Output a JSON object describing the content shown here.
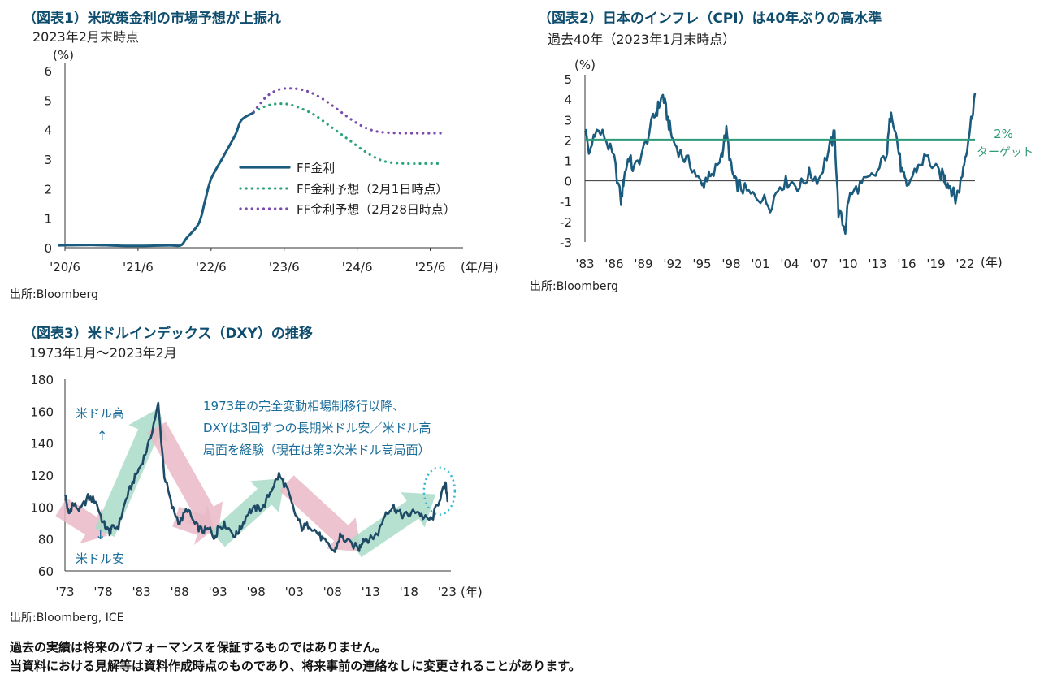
{
  "charts": [
    {
      "title": "（図表1）米政策金利の市場予想が上振れ",
      "subtitle": "2023年2月末時点",
      "source": "出所:Bloomberg",
      "unit_label": "(%)",
      "x_unit_label": "(年/月)"
    },
    {
      "title": "（図表2）日本のインフレ（CPI）は40年ぶりの高水準",
      "subtitle": "過去40年（2023年1月末時点）",
      "source": "出所:Bloomberg",
      "unit_label": "(%)",
      "x_unit_label": "(年)",
      "target_label_1": "2%",
      "target_label_2": "ターゲット"
    },
    {
      "title": "（図表3）米ドルインデックス（DXY）の推移",
      "subtitle": "1973年1月～2023年2月",
      "source": "出所:Bloomberg, ICE",
      "x_unit_label": "(年)",
      "annotation_lines": [
        "1973年の完全変動相場制移行以降、",
        "DXYは3回ずつの長期米ドル安／米ドル高",
        "局面を経験（現在は第3次米ドル高局面）"
      ],
      "label_high": "米ドル高",
      "label_low": "米ドル安",
      "arrow_up": "↑",
      "arrow_down": "↓"
    }
  ],
  "disclaimer": [
    "過去の実績は将来のパフォーマンスを保証するものではありません。",
    "当資料における見解等は資料作成時点のものであり、将来事前の連絡なしに変更されることがあります。"
  ],
  "colors": {
    "navy": "#1a5b7e",
    "teal": "#2aa37a",
    "purple": "#7a4aae",
    "green_line": "#2e9a7a",
    "pink": "#e9b8c6",
    "mint": "#a9dcc8",
    "cyan": "#35b7d0"
  },
  "chart_data": [
    {
      "type": "line",
      "title": "（図表1）米政策金利の市場予想が上振れ",
      "ylabel": "(%)",
      "xlabel": "(年/月)",
      "ylim": [
        0,
        6
      ],
      "yticks": [
        "0",
        "1",
        "2",
        "3",
        "4",
        "5",
        "6"
      ],
      "xticks": [
        "'20/6",
        "'21/6",
        "'22/6",
        "'23/6",
        "'24/6",
        "'25/6"
      ],
      "series": [
        {
          "name": "FF金利",
          "style": "solid",
          "x": [
            "2020-06",
            "2020-12",
            "2021-06",
            "2021-12",
            "2022-02",
            "2022-03",
            "2022-05",
            "2022-06",
            "2022-07",
            "2022-09",
            "2022-11",
            "2022-12",
            "2023-02"
          ],
          "y": [
            0.08,
            0.09,
            0.06,
            0.08,
            0.08,
            0.33,
            0.83,
            1.58,
            2.33,
            3.08,
            3.83,
            4.33,
            4.58
          ]
        },
        {
          "name": "FF金利予想（2月1日時点）",
          "style": "dotted",
          "x": [
            "2023-02",
            "2023-04",
            "2023-06",
            "2023-08",
            "2023-10",
            "2023-12",
            "2024-02",
            "2024-04",
            "2024-06",
            "2024-08",
            "2024-10",
            "2024-12",
            "2025-03",
            "2025-06",
            "2025-09"
          ],
          "y": [
            4.6,
            4.8,
            4.88,
            4.85,
            4.7,
            4.5,
            4.2,
            3.9,
            3.6,
            3.3,
            3.05,
            2.9,
            2.85,
            2.85,
            2.85
          ]
        },
        {
          "name": "FF金利予想（2月28日時点）",
          "style": "dotted",
          "x": [
            "2023-02",
            "2023-04",
            "2023-06",
            "2023-08",
            "2023-10",
            "2023-12",
            "2024-02",
            "2024-04",
            "2024-06",
            "2024-08",
            "2024-10",
            "2024-12",
            "2025-03",
            "2025-06",
            "2025-09"
          ],
          "y": [
            4.6,
            5.1,
            5.35,
            5.4,
            5.35,
            5.2,
            4.95,
            4.65,
            4.35,
            4.1,
            3.95,
            3.9,
            3.88,
            3.88,
            3.88
          ]
        }
      ]
    },
    {
      "type": "line",
      "title": "（図表2）日本のインフレ（CPI）は40年ぶりの高水準",
      "ylabel": "(%)",
      "xlabel": "(年)",
      "ylim": [
        -3,
        5
      ],
      "yticks": [
        "5",
        "4",
        "3",
        "2",
        "1",
        "0",
        "-1",
        "-2",
        "-3"
      ],
      "xticks": [
        "'83",
        "'86",
        "'89",
        "'92",
        "'95",
        "'98",
        "'01",
        "'04",
        "'07",
        "'10",
        "'13",
        "'16",
        "'19",
        "'22"
      ],
      "reference_line": 2,
      "series": [
        {
          "name": "CPI",
          "x": [
            1983,
            1983.5,
            1984,
            1985,
            1986,
            1986.7,
            1987,
            1987.5,
            1988,
            1989,
            1990,
            1990.5,
            1991,
            1991.5,
            1992,
            1993,
            1994,
            1995,
            1995.5,
            1996,
            1997,
            1997.5,
            1998,
            1998.4,
            1999,
            2000,
            2001,
            2002,
            2003,
            2004,
            2005,
            2006,
            2007,
            2008,
            2008.6,
            2009,
            2009.7,
            2010,
            2011,
            2012,
            2013,
            2014,
            2014.4,
            2015,
            2015.5,
            2016,
            2017,
            2018,
            2019,
            2019.8,
            2020,
            2020.5,
            2021,
            2021.5,
            2022,
            2022.5,
            2023
          ],
          "y": [
            2.6,
            1.2,
            2.5,
            2.2,
            1.0,
            -1.0,
            0.2,
            1.2,
            0.5,
            1.5,
            3.0,
            3.6,
            4.2,
            3.0,
            2.0,
            1.2,
            0.7,
            -0.3,
            0.2,
            0.1,
            1.3,
            2.4,
            0.6,
            -0.1,
            -0.3,
            -0.7,
            -0.8,
            -1.2,
            -0.2,
            0.0,
            -0.3,
            0.3,
            0.1,
            1.5,
            2.3,
            -1.5,
            -2.4,
            -0.9,
            -0.3,
            0.0,
            0.4,
            1.5,
            3.6,
            2.0,
            0.4,
            -0.3,
            0.6,
            1.2,
            0.5,
            0.2,
            0.0,
            -0.3,
            -0.9,
            -0.2,
            1.2,
            2.6,
            4.3
          ]
        }
      ]
    },
    {
      "type": "line",
      "title": "（図表3）米ドルインデックス（DXY）の推移",
      "xlabel": "(年)",
      "ylim": [
        60,
        180
      ],
      "yticks": [
        "180",
        "160",
        "140",
        "120",
        "100",
        "80",
        "60"
      ],
      "xticks": [
        "'73",
        "'78",
        "'83",
        "'88",
        "'93",
        "'98",
        "'03",
        "'08",
        "'13",
        "'18",
        "'23"
      ],
      "series": [
        {
          "name": "DXY",
          "x": [
            1973,
            1973.5,
            1974,
            1975,
            1976,
            1977,
            1978,
            1978.8,
            1979,
            1980,
            1981,
            1982,
            1983,
            1984,
            1985.2,
            1986,
            1987,
            1988,
            1989,
            1990,
            1991,
            1992,
            1992.7,
            1993,
            1994,
            1995.3,
            1996,
            1997,
            1998,
            1999,
            2000,
            2001,
            2002,
            2003,
            2004,
            2005,
            2006,
            2007,
            2008.3,
            2009,
            2010,
            2011.5,
            2012,
            2013,
            2014,
            2015,
            2016,
            2017,
            2018,
            2019,
            2020,
            2021,
            2022,
            2022.8,
            2023.1
          ],
          "y": [
            108,
            95,
            102,
            98,
            106,
            104,
            90,
            84,
            86,
            88,
            105,
            117,
            127,
            140,
            164,
            120,
            100,
            90,
            99,
            89,
            85,
            86,
            80,
            88,
            89,
            82,
            87,
            97,
            99,
            100,
            111,
            120,
            112,
            97,
            87,
            89,
            84,
            78,
            72,
            82,
            78,
            74,
            80,
            80,
            84,
            97,
            100,
            95,
            95,
            98,
            93,
            92,
            105,
            114,
            104
          ]
        }
      ]
    }
  ]
}
